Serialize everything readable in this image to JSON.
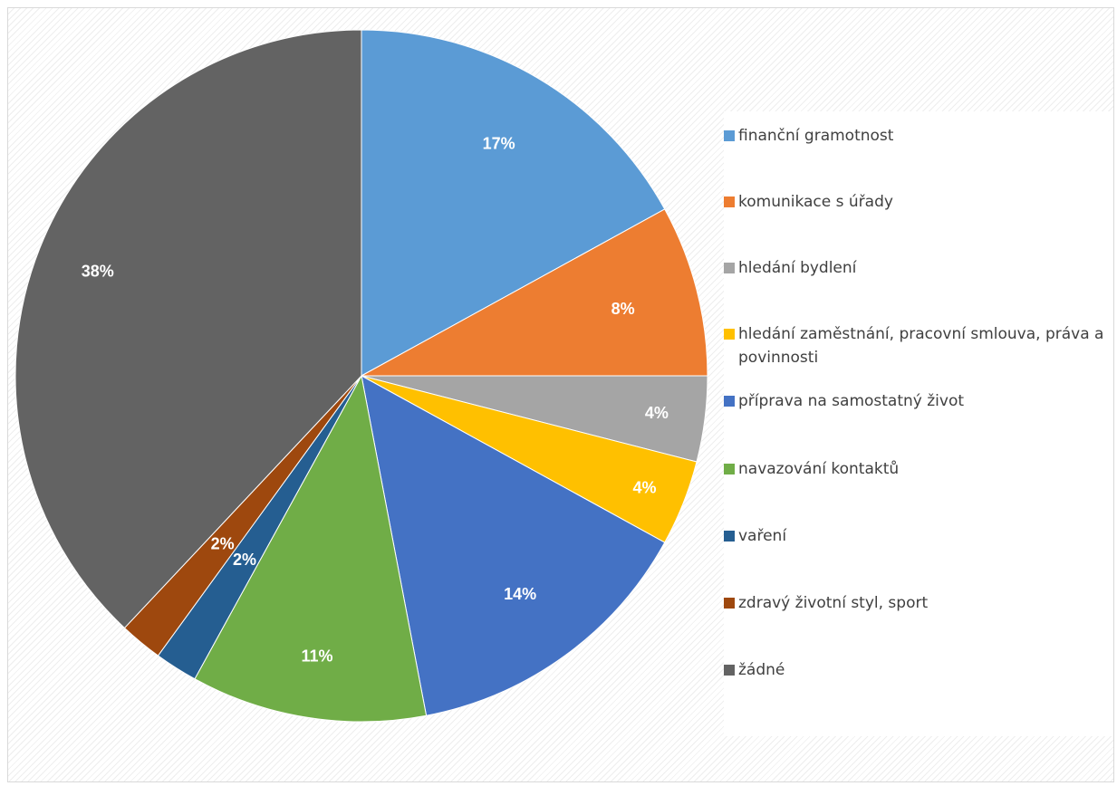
{
  "chart_data": {
    "type": "pie",
    "slices": [
      {
        "label": "finanční gramotnost",
        "value": 17,
        "value_label": "17%",
        "color": "#5B9BD5"
      },
      {
        "label": "komunikace s úřady",
        "value": 8,
        "value_label": "8%",
        "color": "#ED7D31"
      },
      {
        "label": "hledání bydlení",
        "value": 4,
        "value_label": "4%",
        "color": "#A5A5A5"
      },
      {
        "label": "hledání zaměstnání, pracovní smlouva, práva a povinnosti",
        "value": 4,
        "value_label": "4%",
        "color": "#FFC000"
      },
      {
        "label": "příprava na samostatný život",
        "value": 14,
        "value_label": "14%",
        "color": "#4472C4"
      },
      {
        "label": "navazování kontaktů",
        "value": 11,
        "value_label": "11%",
        "color": "#70AD47"
      },
      {
        "label": "vaření",
        "value": 2,
        "value_label": "2%",
        "color": "#255E91"
      },
      {
        "label": "zdravý životní styl, sport",
        "value": 2,
        "value_label": "2%",
        "color": "#9E480E"
      },
      {
        "label": "žádné",
        "value": 38,
        "value_label": "38%",
        "color": "#636363"
      }
    ],
    "legend_position": "right",
    "start_angle": "12 o'clock",
    "direction": "clockwise"
  }
}
